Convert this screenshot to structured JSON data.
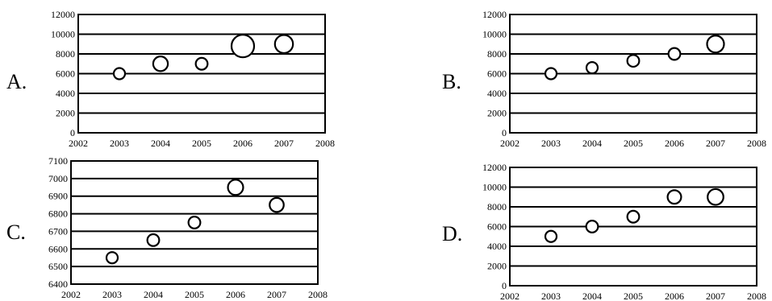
{
  "chart_data": [
    {
      "type": "scatter",
      "option_label": "A.",
      "xlim": [
        2002,
        2008
      ],
      "ylim": [
        0,
        12000
      ],
      "x_ticks": [
        "2002",
        "2003",
        "2004",
        "2005",
        "2006",
        "2007",
        "2008"
      ],
      "y_ticks": [
        "0",
        "2000",
        "4000",
        "6000",
        "8000",
        "10000",
        "12000"
      ],
      "grid": true,
      "x": [
        2003,
        2004,
        2005,
        2006,
        2007
      ],
      "y": [
        6000,
        7000,
        7000,
        8800,
        9000
      ],
      "bubble_size": [
        1.0,
        1.3,
        1.05,
        2.0,
        1.6
      ]
    },
    {
      "type": "scatter",
      "option_label": "B.",
      "xlim": [
        2002,
        2008
      ],
      "ylim": [
        0,
        12000
      ],
      "x_ticks": [
        "2002",
        "2003",
        "2004",
        "2005",
        "2006",
        "2007",
        "2008"
      ],
      "y_ticks": [
        "0",
        "2000",
        "4000",
        "6000",
        "8000",
        "10000",
        "12000"
      ],
      "grid": true,
      "x": [
        2003,
        2004,
        2005,
        2006,
        2007
      ],
      "y": [
        6000,
        6600,
        7300,
        8000,
        9000
      ],
      "bubble_size": [
        1.0,
        1.0,
        1.05,
        1.05,
        1.5
      ]
    },
    {
      "type": "scatter",
      "option_label": "C.",
      "xlim": [
        2002,
        2008
      ],
      "ylim": [
        6400,
        7100
      ],
      "x_ticks": [
        "2002",
        "2003",
        "2004",
        "2005",
        "2006",
        "2007",
        "2008"
      ],
      "y_ticks": [
        "6400",
        "6500",
        "6600",
        "6700",
        "6800",
        "6900",
        "7000",
        "7100"
      ],
      "grid": true,
      "x": [
        2003,
        2004,
        2005,
        2006,
        2007
      ],
      "y": [
        6550,
        6650,
        6750,
        6950,
        6850
      ],
      "bubble_size": [
        1.0,
        1.05,
        1.05,
        1.35,
        1.25
      ]
    },
    {
      "type": "scatter",
      "option_label": "D.",
      "xlim": [
        2002,
        2008
      ],
      "ylim": [
        0,
        12000
      ],
      "x_ticks": [
        "2002",
        "2003",
        "2004",
        "2005",
        "2006",
        "2007",
        "2008"
      ],
      "y_ticks": [
        "0",
        "2000",
        "4000",
        "6000",
        "8000",
        "10000",
        "12000"
      ],
      "grid": true,
      "x": [
        2003,
        2004,
        2005,
        2006,
        2007
      ],
      "y": [
        5000,
        6000,
        7000,
        9000,
        9000
      ],
      "bubble_size": [
        1.0,
        1.05,
        1.05,
        1.2,
        1.4
      ]
    }
  ]
}
